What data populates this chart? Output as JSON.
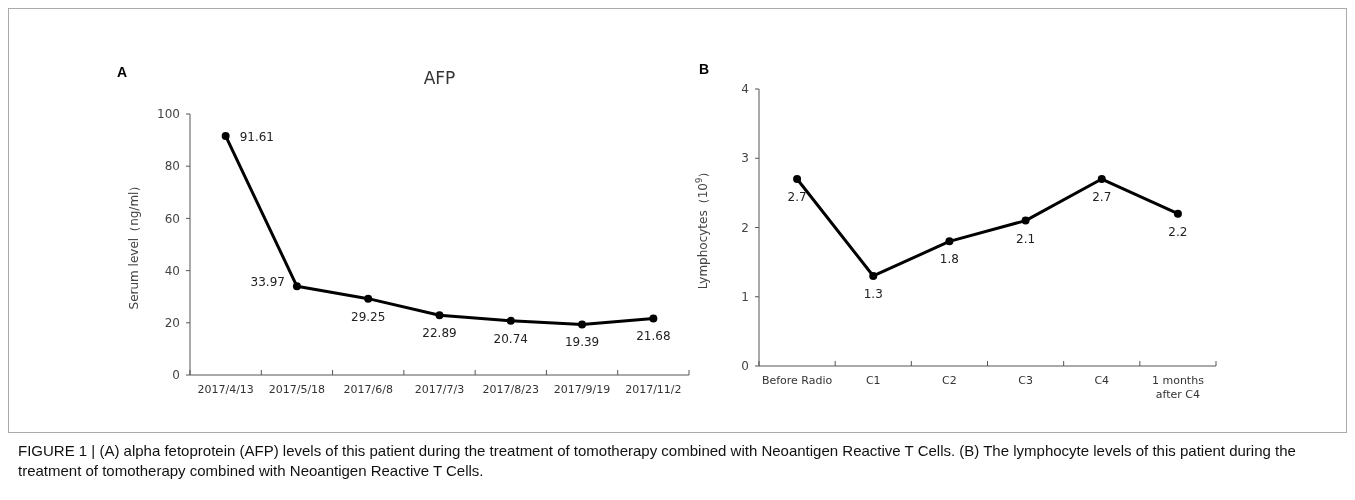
{
  "chart_data": [
    {
      "type": "line",
      "title": "AFP",
      "ylabel": "Serum level（ng/ml）",
      "categories": [
        "2017/4/13",
        "2017/5/18",
        "2017/6/8",
        "2017/7/3",
        "2017/8/23",
        "2017/9/19",
        "2017/11/2"
      ],
      "series": [
        {
          "color": "#000000",
          "values": [
            91.61,
            33.97,
            29.25,
            22.89,
            20.74,
            19.39,
            21.68
          ]
        }
      ],
      "ylim": [
        0,
        100
      ],
      "yticks": [
        0,
        20,
        40,
        60,
        80,
        100
      ],
      "marker": "circle",
      "data_labels": true,
      "grid": false,
      "annotations": [
        "A",
        "FIGURE 1 | (A) alpha fetoprotein (AFP) levels of this patient during the treatment of tomotherapy combined with Neoantigen Reactive T Cells. (B) The lymphocyte levels of this patient during the treatment of tomotherapy combined with Neoantigen Reactive T Cells."
      ]
    },
    {
      "type": "line",
      "ylabel": "Lymphocytes（10$^{9}$）",
      "categories": [
        "Before Radio",
        "C1",
        "C2",
        "C3",
        "C4",
        "1 months after C4"
      ],
      "series": [
        {
          "color": "#000000",
          "values": [
            2.7,
            1.3,
            1.8,
            2.1,
            2.7,
            2.2
          ]
        }
      ],
      "ylim": [
        0,
        4
      ],
      "yticks": [
        0,
        1,
        2,
        3,
        4
      ],
      "marker": "circle",
      "data_labels": true,
      "grid": false,
      "annotations": [
        "B"
      ]
    }
  ]
}
